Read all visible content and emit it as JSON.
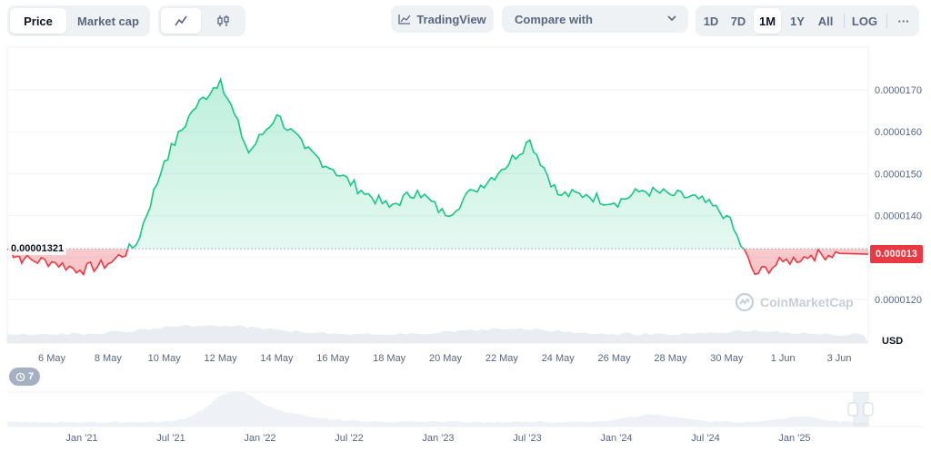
{
  "toolbar": {
    "metric_tabs": [
      "Price",
      "Market cap"
    ],
    "active_metric": "Price",
    "chart_type_icons": [
      "line-chart-icon",
      "candlestick-icon"
    ],
    "tradingview_label": "TradingView",
    "compare_label": "Compare with",
    "ranges": [
      "1D",
      "7D",
      "1M",
      "1Y",
      "All"
    ],
    "active_range": "1M",
    "log_label": "LOG",
    "more_label": "···"
  },
  "chart_data": {
    "type": "area",
    "x": [
      "6 May",
      "8 May",
      "10 May",
      "12 May",
      "14 May",
      "16 May",
      "18 May",
      "20 May",
      "22 May",
      "24 May",
      "26 May",
      "28 May",
      "30 May",
      "1 Jun",
      "3 Jun"
    ],
    "y_ticks": [
      "0.0000170",
      "0.0000160",
      "0.0000150",
      "0.0000140",
      "0.0000130",
      "0.0000120"
    ],
    "y_currency": "USD",
    "series": [
      {
        "points": [
          [
            "4 May",
            13.21
          ],
          [
            "5 May",
            12.95
          ],
          [
            "6 May",
            12.9
          ],
          [
            "7 May",
            12.7
          ],
          [
            "8 May",
            12.85
          ],
          [
            "9 May",
            13.3
          ],
          [
            "10 May",
            15.3
          ],
          [
            "11 May",
            16.5
          ],
          [
            "12 May",
            17.25
          ],
          [
            "13 May",
            15.5
          ],
          [
            "14 May",
            16.4
          ],
          [
            "15 May",
            15.6
          ],
          [
            "16 May",
            15.1
          ],
          [
            "17 May",
            14.6
          ],
          [
            "18 May",
            14.2
          ],
          [
            "19 May",
            14.6
          ],
          [
            "20 May",
            14.0
          ],
          [
            "21 May",
            14.6
          ],
          [
            "22 May",
            15.1
          ],
          [
            "23 May",
            15.8
          ],
          [
            "24 May",
            14.5
          ],
          [
            "25 May",
            14.5
          ],
          [
            "26 May",
            14.3
          ],
          [
            "27 May",
            14.6
          ],
          [
            "28 May",
            14.5
          ],
          [
            "29 May",
            14.4
          ],
          [
            "30 May",
            14.0
          ],
          [
            "31 May",
            12.6
          ],
          [
            "1 Jun",
            12.9
          ],
          [
            "2 Jun",
            13.05
          ],
          [
            "3 Jun",
            13.1
          ]
        ]
      }
    ],
    "baseline_label": "0.00001321",
    "current_price_label": "0.000013",
    "color_up": "#16c784",
    "color_down": "#ea3943",
    "grid": true
  },
  "navigator": {
    "labels": [
      "Jan '21",
      "Jul '21",
      "Jan '22",
      "Jul '22",
      "Jan '23",
      "Jul '23",
      "Jan '24",
      "Jul '24",
      "Jan '25"
    ],
    "events_badge": "7"
  },
  "watermark": "CoinMarketCap"
}
